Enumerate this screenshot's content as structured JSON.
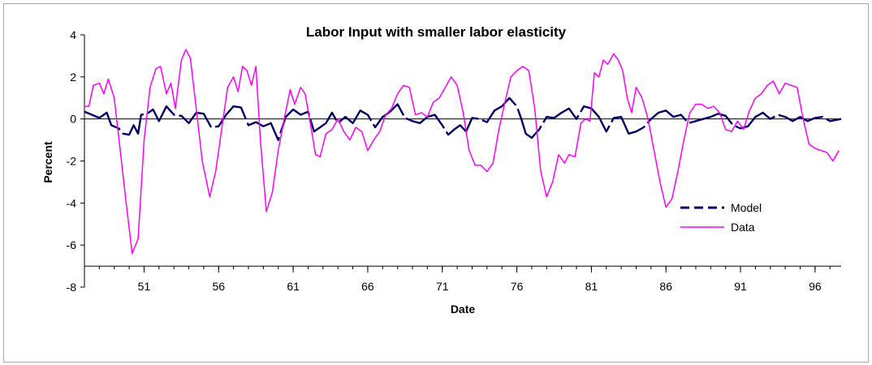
{
  "chart_data": {
    "type": "line",
    "title": "Labor Input with smaller labor elasticity",
    "xlabel": "Date",
    "ylabel": "Percent",
    "ylim": [
      -8,
      4
    ],
    "yticks": [
      4,
      2,
      0,
      -2,
      -4,
      -6,
      -8
    ],
    "xlim": [
      1947,
      1997.75
    ],
    "xticks": [
      {
        "value": 1951,
        "label": "51"
      },
      {
        "value": 1956,
        "label": "56"
      },
      {
        "value": 1961,
        "label": "61"
      },
      {
        "value": 1966,
        "label": "66"
      },
      {
        "value": 1971,
        "label": "71"
      },
      {
        "value": 1976,
        "label": "76"
      },
      {
        "value": 1981,
        "label": "81"
      },
      {
        "value": 1986,
        "label": "86"
      },
      {
        "value": 1991,
        "label": "91"
      },
      {
        "value": 1996,
        "label": "96"
      }
    ],
    "legend_position": "right",
    "series": [
      {
        "name": "Model",
        "color": "#000066",
        "style": "dashed",
        "points": [
          [
            1947.0,
            0.35
          ],
          [
            1947.5,
            0.2
          ],
          [
            1948.0,
            0.05
          ],
          [
            1948.5,
            0.3
          ],
          [
            1948.8,
            -0.3
          ],
          [
            1949.3,
            -0.45
          ],
          [
            1949.6,
            -0.7
          ],
          [
            1950.0,
            -0.75
          ],
          [
            1950.3,
            -0.3
          ],
          [
            1950.6,
            -0.7
          ],
          [
            1950.8,
            0.2
          ],
          [
            1951.2,
            0.25
          ],
          [
            1951.6,
            0.45
          ],
          [
            1952.0,
            -0.1
          ],
          [
            1952.5,
            0.6
          ],
          [
            1953.0,
            0.2
          ],
          [
            1953.5,
            0.15
          ],
          [
            1954.0,
            -0.2
          ],
          [
            1954.5,
            0.3
          ],
          [
            1955.0,
            0.25
          ],
          [
            1955.5,
            -0.4
          ],
          [
            1956.0,
            -0.35
          ],
          [
            1956.5,
            0.2
          ],
          [
            1957.0,
            0.6
          ],
          [
            1957.5,
            0.55
          ],
          [
            1958.0,
            -0.3
          ],
          [
            1958.5,
            -0.15
          ],
          [
            1959.0,
            -0.35
          ],
          [
            1959.5,
            -0.2
          ],
          [
            1960.0,
            -1.0
          ],
          [
            1960.5,
            0.1
          ],
          [
            1961.0,
            0.45
          ],
          [
            1961.5,
            0.2
          ],
          [
            1962.0,
            0.35
          ],
          [
            1962.4,
            -0.6
          ],
          [
            1962.8,
            -0.4
          ],
          [
            1963.2,
            -0.2
          ],
          [
            1963.6,
            0.3
          ],
          [
            1964.0,
            -0.2
          ],
          [
            1964.5,
            0.1
          ],
          [
            1965.0,
            -0.2
          ],
          [
            1965.5,
            0.4
          ],
          [
            1966.0,
            0.2
          ],
          [
            1966.5,
            -0.4
          ],
          [
            1967.0,
            0.1
          ],
          [
            1967.5,
            0.35
          ],
          [
            1968.0,
            0.7
          ],
          [
            1968.5,
            0.05
          ],
          [
            1969.0,
            -0.1
          ],
          [
            1969.5,
            -0.2
          ],
          [
            1970.0,
            0.1
          ],
          [
            1970.5,
            0.2
          ],
          [
            1971.0,
            -0.3
          ],
          [
            1971.4,
            -0.75
          ],
          [
            1971.8,
            -0.5
          ],
          [
            1972.2,
            -0.3
          ],
          [
            1972.6,
            -0.6
          ],
          [
            1973.0,
            0.05
          ],
          [
            1973.5,
            0.0
          ],
          [
            1974.0,
            -0.15
          ],
          [
            1974.5,
            0.4
          ],
          [
            1975.0,
            0.6
          ],
          [
            1975.5,
            1.0
          ],
          [
            1976.0,
            0.6
          ],
          [
            1976.3,
            0.0
          ],
          [
            1976.6,
            -0.7
          ],
          [
            1977.0,
            -0.9
          ],
          [
            1977.5,
            -0.5
          ],
          [
            1978.0,
            0.1
          ],
          [
            1978.5,
            0.05
          ],
          [
            1979.0,
            0.3
          ],
          [
            1979.5,
            0.5
          ],
          [
            1980.0,
            0.0
          ],
          [
            1980.5,
            0.6
          ],
          [
            1981.0,
            0.5
          ],
          [
            1981.5,
            0.1
          ],
          [
            1982.0,
            -0.6
          ],
          [
            1982.5,
            0.05
          ],
          [
            1983.0,
            0.1
          ],
          [
            1983.5,
            -0.7
          ],
          [
            1984.0,
            -0.6
          ],
          [
            1984.5,
            -0.4
          ],
          [
            1985.0,
            0.0
          ],
          [
            1985.5,
            0.3
          ],
          [
            1986.0,
            0.4
          ],
          [
            1986.5,
            0.1
          ],
          [
            1987.0,
            0.2
          ],
          [
            1987.5,
            -0.2
          ],
          [
            1988.0,
            -0.1
          ],
          [
            1988.5,
            0.0
          ],
          [
            1989.0,
            0.1
          ],
          [
            1989.5,
            0.25
          ],
          [
            1990.0,
            0.15
          ],
          [
            1990.5,
            -0.3
          ],
          [
            1991.0,
            -0.45
          ],
          [
            1991.5,
            -0.35
          ],
          [
            1992.0,
            0.1
          ],
          [
            1992.5,
            0.3
          ],
          [
            1993.0,
            0.0
          ],
          [
            1993.5,
            0.2
          ],
          [
            1994.0,
            0.1
          ],
          [
            1994.5,
            -0.1
          ],
          [
            1995.0,
            0.1
          ],
          [
            1995.5,
            -0.1
          ],
          [
            1996.0,
            0.05
          ],
          [
            1996.5,
            0.1
          ],
          [
            1997.0,
            -0.1
          ],
          [
            1997.75,
            0.0
          ]
        ]
      },
      {
        "name": "Data",
        "color": "#ff00ff",
        "style": "solid",
        "points": [
          [
            1947.0,
            0.6
          ],
          [
            1947.3,
            0.6
          ],
          [
            1947.6,
            1.6
          ],
          [
            1948.0,
            1.7
          ],
          [
            1948.3,
            1.2
          ],
          [
            1948.6,
            1.9
          ],
          [
            1949.0,
            1.0
          ],
          [
            1949.4,
            -1.5
          ],
          [
            1949.8,
            -4.0
          ],
          [
            1950.2,
            -6.4
          ],
          [
            1950.6,
            -5.7
          ],
          [
            1951.0,
            -1.0
          ],
          [
            1951.4,
            1.5
          ],
          [
            1951.8,
            2.4
          ],
          [
            1952.1,
            2.5
          ],
          [
            1952.5,
            1.2
          ],
          [
            1952.8,
            1.7
          ],
          [
            1953.1,
            0.5
          ],
          [
            1953.5,
            2.8
          ],
          [
            1953.8,
            3.3
          ],
          [
            1954.1,
            2.9
          ],
          [
            1954.5,
            0.5
          ],
          [
            1954.9,
            -2.0
          ],
          [
            1955.4,
            -3.7
          ],
          [
            1955.8,
            -2.5
          ],
          [
            1956.2,
            -0.5
          ],
          [
            1956.6,
            1.5
          ],
          [
            1957.0,
            2.0
          ],
          [
            1957.3,
            1.3
          ],
          [
            1957.6,
            2.5
          ],
          [
            1957.9,
            2.3
          ],
          [
            1958.2,
            1.6
          ],
          [
            1958.5,
            2.5
          ],
          [
            1958.8,
            -1.0
          ],
          [
            1959.2,
            -4.4
          ],
          [
            1959.6,
            -3.5
          ],
          [
            1960.0,
            -1.5
          ],
          [
            1960.4,
            0.0
          ],
          [
            1960.8,
            1.4
          ],
          [
            1961.1,
            0.7
          ],
          [
            1961.5,
            1.5
          ],
          [
            1961.8,
            1.2
          ],
          [
            1962.1,
            0.0
          ],
          [
            1962.5,
            -1.7
          ],
          [
            1962.8,
            -1.8
          ],
          [
            1963.2,
            -0.7
          ],
          [
            1963.6,
            -0.5
          ],
          [
            1964.0,
            0.0
          ],
          [
            1964.4,
            -0.6
          ],
          [
            1964.8,
            -1.0
          ],
          [
            1965.2,
            -0.4
          ],
          [
            1965.6,
            -0.6
          ],
          [
            1966.0,
            -1.5
          ],
          [
            1966.4,
            -1.0
          ],
          [
            1966.8,
            -0.6
          ],
          [
            1967.2,
            0.2
          ],
          [
            1967.6,
            0.5
          ],
          [
            1968.0,
            1.2
          ],
          [
            1968.4,
            1.6
          ],
          [
            1968.8,
            1.5
          ],
          [
            1969.2,
            0.2
          ],
          [
            1969.6,
            0.3
          ],
          [
            1970.0,
            0.1
          ],
          [
            1970.4,
            0.8
          ],
          [
            1970.8,
            1.0
          ],
          [
            1971.2,
            1.5
          ],
          [
            1971.6,
            2.0
          ],
          [
            1972.0,
            1.6
          ],
          [
            1972.4,
            0.3
          ],
          [
            1972.8,
            -1.5
          ],
          [
            1973.2,
            -2.2
          ],
          [
            1973.6,
            -2.2
          ],
          [
            1974.0,
            -2.5
          ],
          [
            1974.4,
            -2.1
          ],
          [
            1974.8,
            -0.5
          ],
          [
            1975.2,
            0.8
          ],
          [
            1975.6,
            2.0
          ],
          [
            1976.0,
            2.3
          ],
          [
            1976.4,
            2.5
          ],
          [
            1976.8,
            2.3
          ],
          [
            1977.2,
            0.5
          ],
          [
            1977.6,
            -2.5
          ],
          [
            1978.0,
            -3.7
          ],
          [
            1978.4,
            -3.0
          ],
          [
            1978.8,
            -1.7
          ],
          [
            1979.2,
            -2.1
          ],
          [
            1979.5,
            -1.7
          ],
          [
            1979.9,
            -1.8
          ],
          [
            1980.3,
            -0.2
          ],
          [
            1980.6,
            0.0
          ],
          [
            1980.9,
            -0.1
          ],
          [
            1981.2,
            2.2
          ],
          [
            1981.5,
            2.0
          ],
          [
            1981.8,
            2.8
          ],
          [
            1982.1,
            2.6
          ],
          [
            1982.5,
            3.1
          ],
          [
            1982.8,
            2.8
          ],
          [
            1983.1,
            2.3
          ],
          [
            1983.4,
            1.0
          ],
          [
            1983.7,
            0.3
          ],
          [
            1984.0,
            1.5
          ],
          [
            1984.4,
            1.0
          ],
          [
            1984.8,
            0.0
          ],
          [
            1985.2,
            -1.5
          ],
          [
            1985.6,
            -3.0
          ],
          [
            1986.0,
            -4.2
          ],
          [
            1986.4,
            -3.8
          ],
          [
            1986.8,
            -2.5
          ],
          [
            1987.2,
            -1.0
          ],
          [
            1987.6,
            0.3
          ],
          [
            1988.0,
            0.7
          ],
          [
            1988.4,
            0.7
          ],
          [
            1988.8,
            0.5
          ],
          [
            1989.2,
            0.6
          ],
          [
            1989.6,
            0.3
          ],
          [
            1990.0,
            -0.5
          ],
          [
            1990.4,
            -0.6
          ],
          [
            1990.8,
            -0.1
          ],
          [
            1991.2,
            -0.5
          ],
          [
            1991.6,
            0.4
          ],
          [
            1992.0,
            1.0
          ],
          [
            1992.4,
            1.2
          ],
          [
            1992.8,
            1.6
          ],
          [
            1993.2,
            1.8
          ],
          [
            1993.6,
            1.2
          ],
          [
            1994.0,
            1.7
          ],
          [
            1994.4,
            1.6
          ],
          [
            1994.8,
            1.5
          ],
          [
            1995.2,
            0.0
          ],
          [
            1995.6,
            -1.2
          ],
          [
            1996.0,
            -1.4
          ],
          [
            1996.4,
            -1.5
          ],
          [
            1996.8,
            -1.6
          ],
          [
            1997.2,
            -2.0
          ],
          [
            1997.6,
            -1.5
          ]
        ]
      }
    ]
  }
}
